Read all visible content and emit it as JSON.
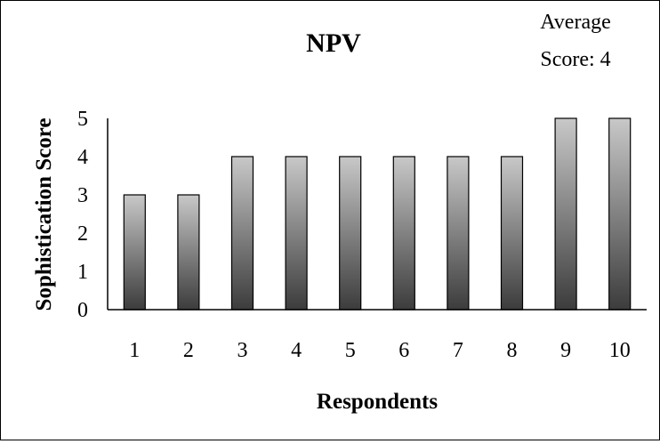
{
  "chart_data": {
    "type": "bar",
    "title": "NPV",
    "annotation": [
      "Average",
      "Score: 4"
    ],
    "xlabel": "Respondents",
    "ylabel": "Sophistication Score",
    "categories": [
      "1",
      "2",
      "3",
      "4",
      "5",
      "6",
      "7",
      "8",
      "9",
      "10"
    ],
    "values": [
      3,
      3,
      4,
      4,
      4,
      4,
      4,
      4,
      5,
      5
    ],
    "ylim": [
      0,
      5
    ],
    "yticks": [
      0,
      1,
      2,
      3,
      4,
      5
    ],
    "grid": false,
    "legend": "none",
    "colors": {
      "bar_top": "#c8c8c8",
      "bar_bottom": "#3c3c3c",
      "outline": "#000000"
    }
  }
}
